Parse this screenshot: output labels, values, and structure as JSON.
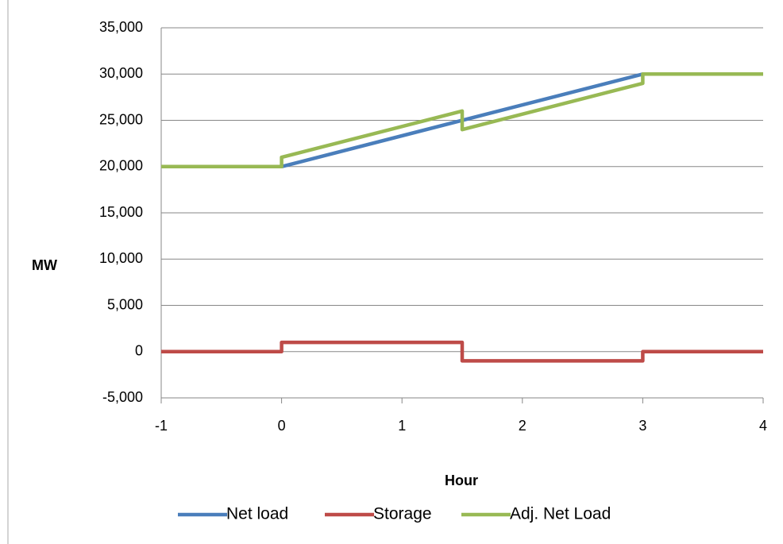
{
  "chart_data": {
    "type": "line",
    "title": "",
    "xlabel": "Hour",
    "ylabel": "MW",
    "xlim": [
      -1,
      4
    ],
    "ylim": [
      -5000,
      35000
    ],
    "x_ticks": [
      -1,
      0,
      1,
      2,
      3,
      4
    ],
    "y_ticks": [
      -5000,
      0,
      5000,
      10000,
      15000,
      20000,
      25000,
      30000,
      35000
    ],
    "grid": "horizontal",
    "legend_position": "bottom",
    "series": [
      {
        "name": "Net load",
        "color": "#4a7ebb",
        "points": [
          [
            -1,
            20000
          ],
          [
            0,
            20000
          ],
          [
            3,
            30000
          ],
          [
            4,
            30000
          ]
        ]
      },
      {
        "name": "Storage",
        "color": "#be4b48",
        "points": [
          [
            -1,
            0
          ],
          [
            0,
            0
          ],
          [
            0,
            1000
          ],
          [
            1.5,
            1000
          ],
          [
            1.5,
            -1000
          ],
          [
            3,
            -1000
          ],
          [
            3,
            0
          ],
          [
            4,
            0
          ]
        ]
      },
      {
        "name": "Adj. Net Load",
        "color": "#98b954",
        "points": [
          [
            -1,
            20000
          ],
          [
            0,
            20000
          ],
          [
            0,
            21000
          ],
          [
            1.5,
            26000
          ],
          [
            1.5,
            24000
          ],
          [
            3,
            29000
          ],
          [
            3,
            30000
          ],
          [
            4,
            30000
          ]
        ]
      }
    ]
  }
}
